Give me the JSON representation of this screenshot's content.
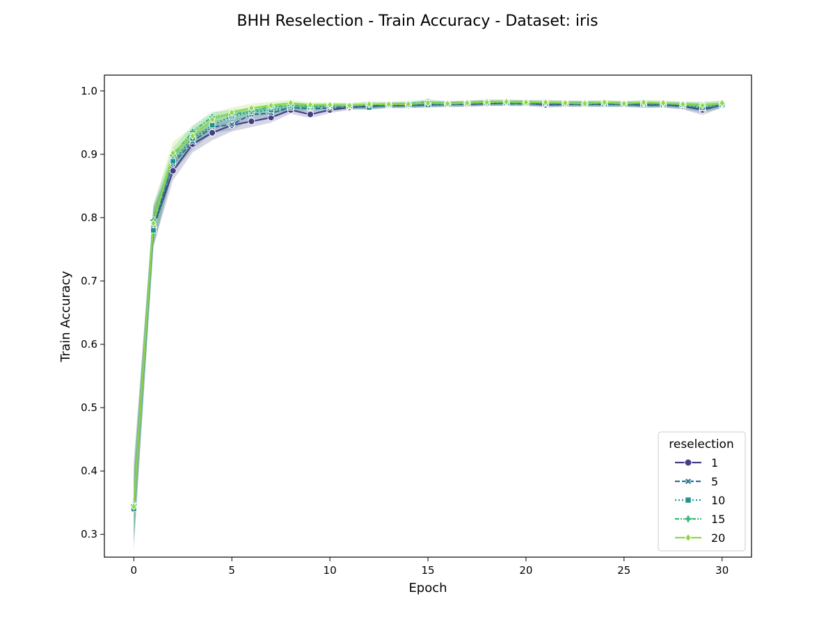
{
  "chart_data": {
    "type": "line",
    "title": "BHH Reselection - Train Accuracy - Dataset: iris",
    "xlabel": "Epoch",
    "ylabel": "Train Accuracy",
    "xlim": [
      -1.5,
      31.5
    ],
    "ylim": [
      0.264,
      1.025
    ],
    "xticks": [
      0,
      5,
      10,
      15,
      20,
      25,
      30
    ],
    "xtick_labels": [
      "0",
      "5",
      "10",
      "15",
      "20",
      "25",
      "30"
    ],
    "yticks": [
      0.3,
      0.4,
      0.5,
      0.6,
      0.7,
      0.8,
      0.9,
      1.0
    ],
    "ytick_labels": [
      "0.3",
      "0.4",
      "0.5",
      "0.6",
      "0.7",
      "0.8",
      "0.9",
      "1.0"
    ],
    "grid": false,
    "legend": {
      "title": "reselection",
      "position": "lower-right"
    },
    "x": [
      0,
      1,
      2,
      3,
      4,
      5,
      6,
      7,
      8,
      9,
      10,
      11,
      12,
      13,
      14,
      15,
      16,
      17,
      18,
      19,
      20,
      21,
      22,
      23,
      24,
      25,
      26,
      27,
      28,
      29,
      30
    ],
    "series": [
      {
        "name": "1",
        "color": "#433e85",
        "dash": "",
        "marker": "circle",
        "values": [
          0.345,
          0.785,
          0.874,
          0.916,
          0.934,
          0.946,
          0.952,
          0.958,
          0.97,
          0.963,
          0.97,
          0.974,
          0.976,
          0.977,
          0.977,
          0.978,
          0.979,
          0.979,
          0.98,
          0.981,
          0.981,
          0.978,
          0.979,
          0.979,
          0.979,
          0.979,
          0.978,
          0.978,
          0.976,
          0.97,
          0.978
        ],
        "ci": [
          0.07,
          0.03,
          0.015,
          0.013,
          0.012,
          0.01,
          0.009,
          0.008,
          0.006,
          0.006,
          0.005,
          0.004,
          0.004,
          0.004,
          0.004,
          0.004,
          0.004,
          0.004,
          0.004,
          0.004,
          0.004,
          0.004,
          0.004,
          0.004,
          0.004,
          0.004,
          0.004,
          0.004,
          0.005,
          0.008,
          0.004
        ]
      },
      {
        "name": "5",
        "color": "#2c728e",
        "dash": "7,3",
        "marker": "x",
        "values": [
          0.343,
          0.788,
          0.885,
          0.92,
          0.943,
          0.947,
          0.963,
          0.965,
          0.974,
          0.972,
          0.973,
          0.975,
          0.975,
          0.977,
          0.977,
          0.979,
          0.979,
          0.979,
          0.981,
          0.98,
          0.98,
          0.979,
          0.979,
          0.979,
          0.979,
          0.979,
          0.977,
          0.978,
          0.976,
          0.972,
          0.977
        ],
        "ci": [
          0.06,
          0.03,
          0.014,
          0.012,
          0.01,
          0.009,
          0.008,
          0.007,
          0.006,
          0.005,
          0.005,
          0.004,
          0.004,
          0.004,
          0.004,
          0.004,
          0.004,
          0.004,
          0.004,
          0.004,
          0.004,
          0.004,
          0.004,
          0.004,
          0.004,
          0.004,
          0.004,
          0.004,
          0.005,
          0.007,
          0.004
        ]
      },
      {
        "name": "10",
        "color": "#21918c",
        "dash": "2,3",
        "marker": "square",
        "values": [
          0.34,
          0.78,
          0.889,
          0.925,
          0.946,
          0.96,
          0.967,
          0.97,
          0.974,
          0.974,
          0.976,
          0.976,
          0.974,
          0.978,
          0.978,
          0.978,
          0.979,
          0.98,
          0.981,
          0.981,
          0.981,
          0.98,
          0.98,
          0.98,
          0.979,
          0.979,
          0.979,
          0.978,
          0.978,
          0.974,
          0.978
        ],
        "ci": [
          0.05,
          0.028,
          0.013,
          0.011,
          0.009,
          0.008,
          0.007,
          0.006,
          0.005,
          0.005,
          0.004,
          0.004,
          0.004,
          0.004,
          0.004,
          0.004,
          0.004,
          0.004,
          0.004,
          0.004,
          0.004,
          0.004,
          0.004,
          0.004,
          0.004,
          0.004,
          0.004,
          0.004,
          0.004,
          0.006,
          0.004
        ]
      },
      {
        "name": "15",
        "color": "#35b779",
        "dash": "6,2,2,2",
        "marker": "plus",
        "values": [
          0.346,
          0.796,
          0.898,
          0.936,
          0.959,
          0.963,
          0.968,
          0.975,
          0.977,
          0.976,
          0.977,
          0.977,
          0.979,
          0.978,
          0.98,
          0.983,
          0.98,
          0.981,
          0.983,
          0.982,
          0.981,
          0.982,
          0.981,
          0.981,
          0.981,
          0.98,
          0.981,
          0.98,
          0.979,
          0.978,
          0.98
        ],
        "ci": [
          0.045,
          0.025,
          0.012,
          0.01,
          0.008,
          0.007,
          0.006,
          0.005,
          0.005,
          0.004,
          0.004,
          0.004,
          0.004,
          0.004,
          0.004,
          0.004,
          0.004,
          0.004,
          0.004,
          0.004,
          0.004,
          0.004,
          0.004,
          0.004,
          0.004,
          0.004,
          0.004,
          0.004,
          0.004,
          0.005,
          0.004
        ]
      },
      {
        "name": "20",
        "color": "#8fd744",
        "dash": "",
        "marker": "diamond",
        "values": [
          0.344,
          0.791,
          0.902,
          0.929,
          0.955,
          0.966,
          0.973,
          0.977,
          0.981,
          0.978,
          0.978,
          0.977,
          0.979,
          0.979,
          0.979,
          0.981,
          0.98,
          0.981,
          0.982,
          0.983,
          0.982,
          0.982,
          0.981,
          0.98,
          0.982,
          0.98,
          0.982,
          0.981,
          0.979,
          0.977,
          0.981
        ],
        "ci": [
          0.05,
          0.03,
          0.018,
          0.014,
          0.01,
          0.008,
          0.007,
          0.006,
          0.005,
          0.004,
          0.004,
          0.004,
          0.004,
          0.004,
          0.004,
          0.004,
          0.004,
          0.004,
          0.004,
          0.004,
          0.004,
          0.004,
          0.004,
          0.004,
          0.004,
          0.004,
          0.004,
          0.004,
          0.004,
          0.005,
          0.004
        ]
      }
    ]
  }
}
